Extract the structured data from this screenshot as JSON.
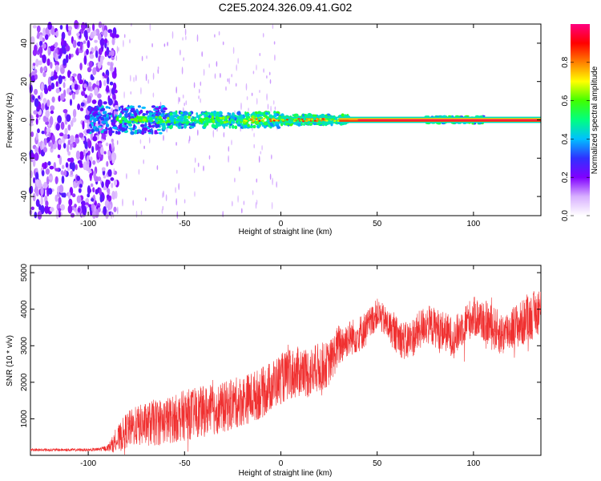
{
  "figure_title": "C2E5.2024.326.09.41.G02",
  "chart_data": [
    {
      "type": "heatmap",
      "title": "C2E5.2024.326.09.41.G02",
      "xlabel": "Height of straight line (km)",
      "ylabel": "Frequency (Hz)",
      "xlim": [
        -130,
        135
      ],
      "ylim": [
        -50,
        50
      ],
      "xticks": [
        -100,
        -50,
        0,
        50,
        100
      ],
      "yticks": [
        -40,
        -20,
        0,
        20,
        40
      ],
      "grid": false,
      "colorbar": {
        "label": "Normalized spectral amplitude",
        "range": [
          0,
          1
        ],
        "ticks": [
          0.0,
          0.2,
          0.4,
          0.6,
          0.8
        ],
        "tick_labels": [
          "0.0",
          "0.2",
          "0.4",
          "0.6",
          "0.8"
        ],
        "colormap": [
          "#ffffff",
          "#d8b0ff",
          "#8000ff",
          "#3030ff",
          "#00c0ff",
          "#00ff80",
          "#40ff00",
          "#ffff00",
          "#ff8000",
          "#ff0000",
          "#ff0080"
        ]
      },
      "description_features": [
        {
          "x_range": [
            -130,
            -85
          ],
          "frequency_range": [
            -50,
            50
          ],
          "amplitude": 0.1
        },
        {
          "x_range": [
            -100,
            -60
          ],
          "frequency_range": [
            -6,
            6
          ],
          "amplitude": 0.3
        },
        {
          "x_range": [
            -60,
            30
          ],
          "frequency_range": [
            -3,
            3
          ],
          "amplitude": 0.45
        },
        {
          "x_range": [
            30,
            135
          ],
          "frequency_range": [
            -1,
            1
          ],
          "amplitude": 0.95
        },
        {
          "x_range": [
            75,
            105
          ],
          "frequency_range": [
            -2,
            2
          ],
          "amplitude": 0.5
        }
      ]
    },
    {
      "type": "line",
      "title": "",
      "xlabel": "Height of straight line (km)",
      "ylabel": "SNR (10 * v/v)",
      "xlim": [
        -130,
        135
      ],
      "ylim": [
        0,
        5200
      ],
      "xticks": [
        -100,
        -50,
        0,
        50,
        100
      ],
      "yticks": [
        1000,
        2000,
        3000,
        4000,
        5000
      ],
      "grid": false,
      "series": [
        {
          "color": "#f03030",
          "x": [
            -130,
            -120,
            -110,
            -100,
            -95,
            -90,
            -85,
            -80,
            -75,
            -70,
            -65,
            -60,
            -55,
            -50,
            -45,
            -40,
            -35,
            -30,
            -25,
            -20,
            -15,
            -10,
            -5,
            0,
            5,
            10,
            15,
            20,
            25,
            30,
            35,
            40,
            45,
            50,
            55,
            60,
            65,
            70,
            75,
            80,
            85,
            90,
            95,
            100,
            105,
            110,
            115,
            120,
            125,
            130,
            135
          ],
          "y": [
            150,
            150,
            150,
            150,
            160,
            200,
            400,
            700,
            800,
            850,
            900,
            950,
            1000,
            1100,
            1150,
            1200,
            1250,
            1300,
            1400,
            1500,
            1600,
            1700,
            1900,
            2100,
            2200,
            2300,
            2250,
            2400,
            2500,
            3000,
            3200,
            3300,
            3500,
            3900,
            3600,
            3300,
            3100,
            3300,
            3600,
            3500,
            3400,
            3200,
            3600,
            3800,
            3700,
            3500,
            3300,
            3500,
            3600,
            3800,
            4000
          ],
          "noise_amplitude": [
            40,
            40,
            40,
            40,
            50,
            80,
            350,
            500,
            550,
            600,
            650,
            650,
            650,
            700,
            700,
            700,
            700,
            700,
            700,
            700,
            700,
            700,
            700,
            700,
            700,
            700,
            700,
            700,
            600,
            600,
            500,
            500,
            500,
            400,
            450,
            500,
            550,
            550,
            550,
            550,
            550,
            550,
            550,
            550,
            600,
            600,
            600,
            600,
            650,
            650,
            650
          ]
        }
      ]
    }
  ]
}
